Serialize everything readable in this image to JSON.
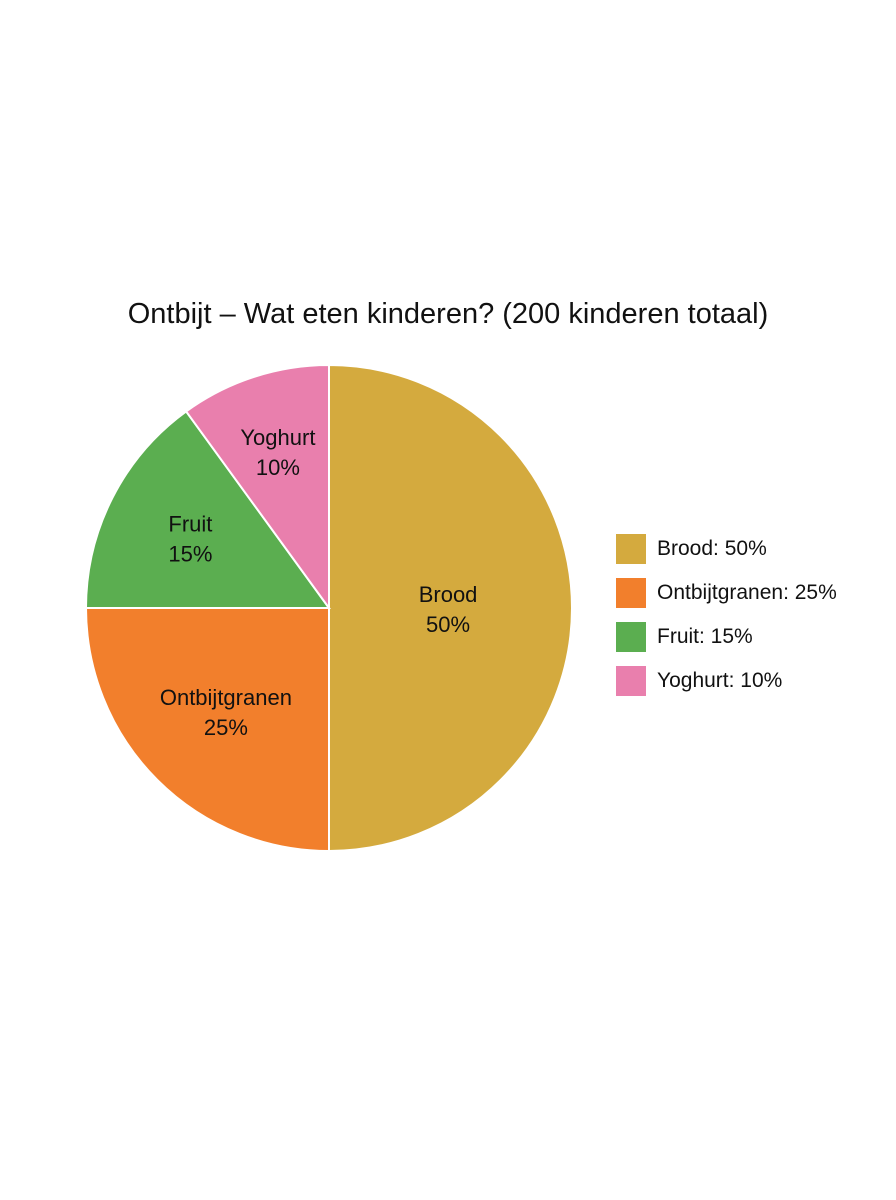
{
  "chart_data": {
    "type": "pie",
    "title": "Ontbijt – Wat eten kinderen? (200 kinderen totaal)",
    "slices": [
      {
        "label": "Brood",
        "value": 50,
        "pct_label": "50%",
        "legend": "Brood: 50%",
        "color": "#D4AA3E"
      },
      {
        "label": "Ontbijtgranen",
        "value": 25,
        "pct_label": "25%",
        "legend": "Ontbijtgranen: 25%",
        "color": "#F27F2C"
      },
      {
        "label": "Fruit",
        "value": 15,
        "pct_label": "15%",
        "legend": "Fruit: 15%",
        "color": "#5BAE50"
      },
      {
        "label": "Yoghurt",
        "value": 10,
        "pct_label": "10%",
        "legend": "Yoghurt: 10%",
        "color": "#E97FAD"
      }
    ],
    "start_angle": "12 o'clock",
    "direction": "clockwise",
    "legend_position": "right"
  }
}
